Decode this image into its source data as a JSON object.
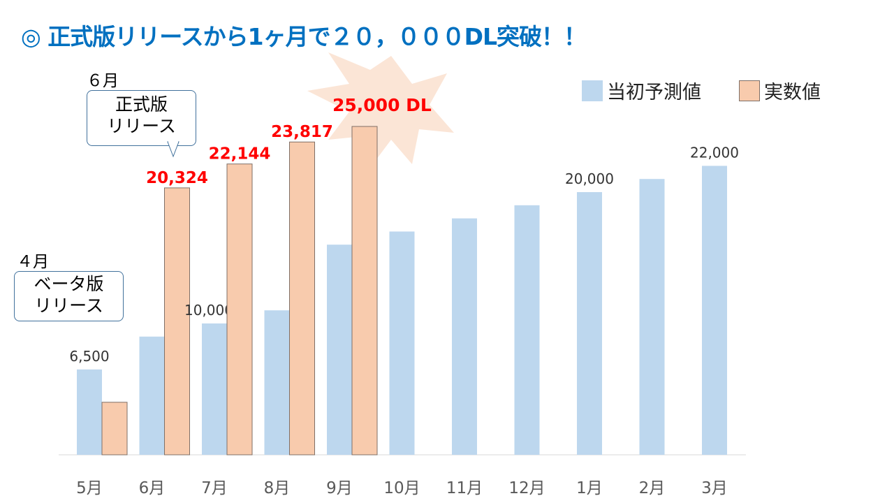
{
  "title": "◎ 正式版リリースから1ヶ月で２０，０００DL突破！！",
  "callouts": [
    {
      "month": "６月",
      "text1": "正式版",
      "text2": "リリース"
    },
    {
      "month": "４月",
      "text1": "ベータ版",
      "text2": "リリース"
    }
  ],
  "highlight": "25,000 DL",
  "colors": {
    "forecast": "#bdd7ee",
    "actual": "#f8cbad",
    "actual_border": "#7f6f66",
    "label_red": "#ff0000",
    "title": "#0070c0"
  },
  "chart_data": {
    "type": "bar",
    "categories": [
      "5月",
      "6月",
      "7月",
      "8月",
      "9月",
      "10月",
      "11月",
      "12月",
      "1月",
      "2月",
      "3月"
    ],
    "series": [
      {
        "name": "当初予測値",
        "values": [
          6500,
          9000,
          10000,
          11000,
          16000,
          17000,
          18000,
          19000,
          20000,
          21000,
          22000
        ],
        "labels": [
          "6,500",
          null,
          "10,000",
          null,
          null,
          null,
          null,
          null,
          "20,000",
          null,
          "22,000"
        ]
      },
      {
        "name": "実数値",
        "values": [
          4000,
          20324,
          22144,
          23817,
          25000,
          null,
          null,
          null,
          null,
          null,
          null
        ],
        "labels": [
          null,
          "20,324",
          "22,144",
          "23,817",
          null,
          null,
          null,
          null,
          null,
          null,
          null
        ]
      }
    ],
    "ylim": [
      0,
      25000
    ],
    "grid": false,
    "legend": "top-right"
  }
}
